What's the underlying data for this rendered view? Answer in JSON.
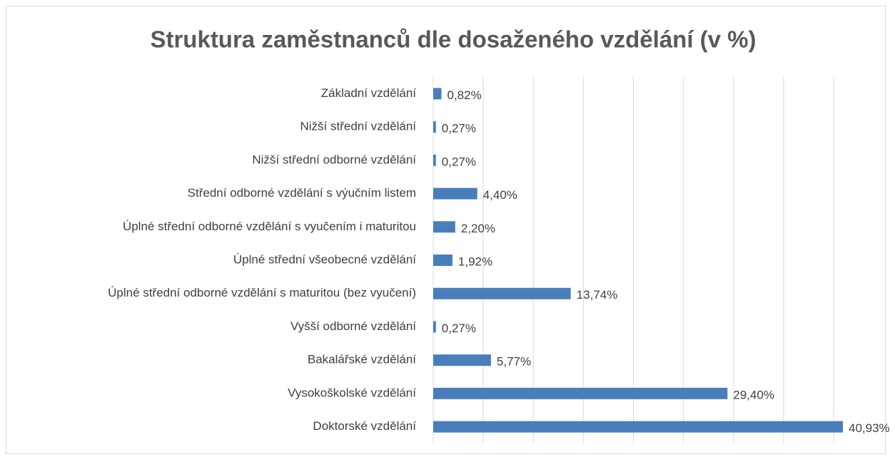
{
  "chart_data": {
    "type": "bar",
    "orientation": "horizontal",
    "title": "Struktura zaměstnanců dle dosaženého vzdělání (v %)",
    "categories": [
      "Základní vzdělání",
      "Nižší střední vzdělání",
      "Nižší střední odborné vzdělání",
      "Střední odborné vzdělání s výučním listem",
      "Úplné střední odborné vzdělání s vyučením i maturitou",
      "Úplné střední všeobecné vzdělání",
      "Úplné střední odborné vzdělání s maturitou (bez vyučení)",
      "Vyšší odborné vzdělání",
      "Bakalářské vzdělání",
      "Vysokoškolské vzdělání",
      "Doktorské vzdělání"
    ],
    "values": [
      0.82,
      0.27,
      0.27,
      4.4,
      2.2,
      1.92,
      13.74,
      0.27,
      5.77,
      29.4,
      40.93
    ],
    "value_labels": [
      "0,82%",
      "0,27%",
      "0,27%",
      "4,40%",
      "2,20%",
      "1,92%",
      "13,74%",
      "0,27%",
      "5,77%",
      "29,40%",
      "40,93%"
    ],
    "color": "#4a7ebb",
    "xlim": [
      0,
      42
    ],
    "xticks": [
      0,
      5,
      10,
      15,
      20,
      25,
      30,
      35,
      40
    ],
    "grid": true
  }
}
